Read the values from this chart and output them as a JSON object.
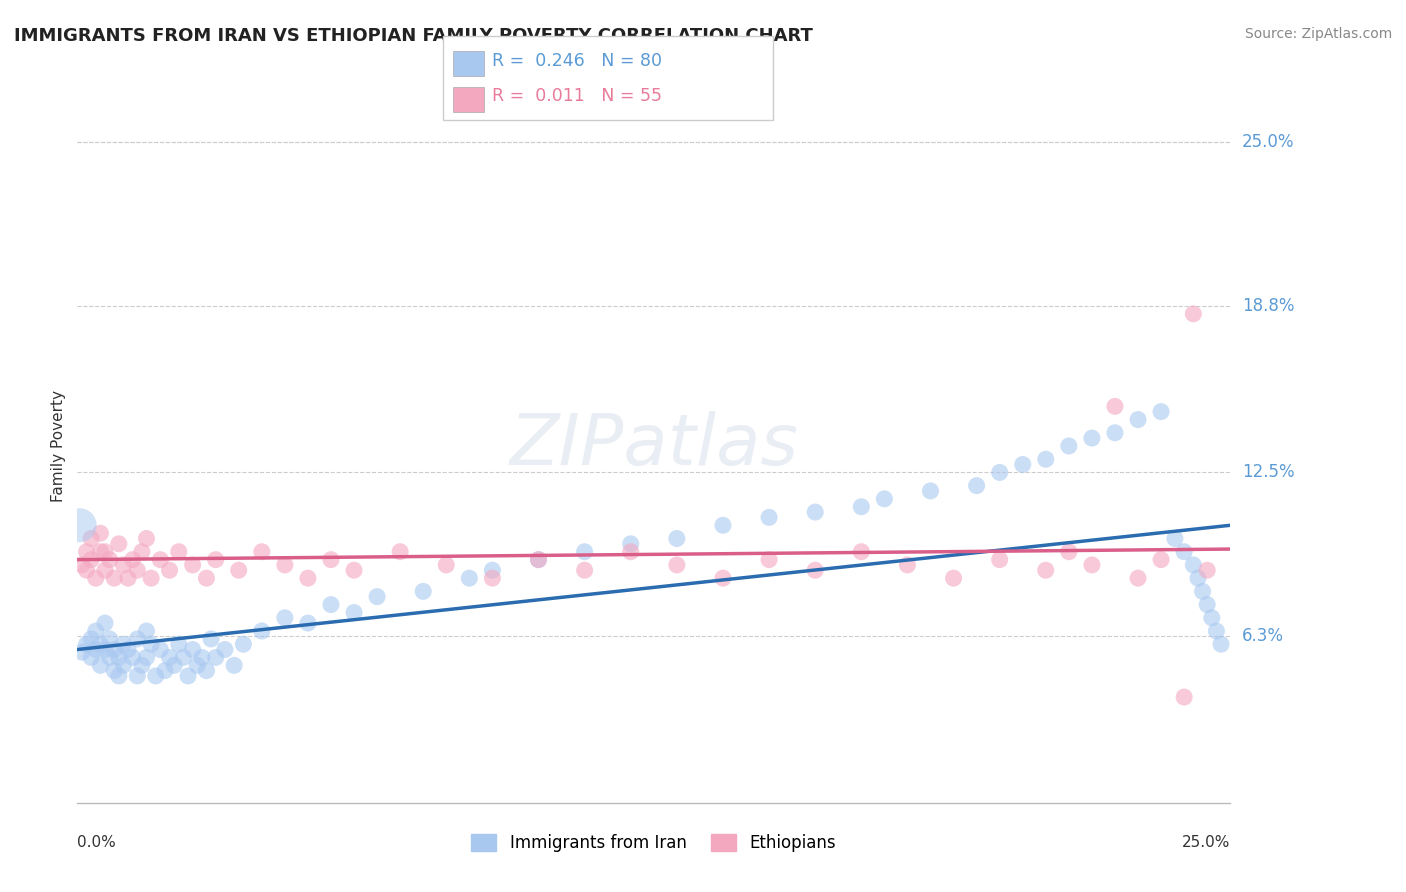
{
  "title": "IMMIGRANTS FROM IRAN VS ETHIOPIAN FAMILY POVERTY CORRELATION CHART",
  "source": "Source: ZipAtlas.com",
  "ylabel": "Family Poverty",
  "xlim": [
    0.0,
    0.25
  ],
  "ylim": [
    0.0,
    0.27
  ],
  "ytick_vals": [
    0.063,
    0.125,
    0.188,
    0.25
  ],
  "ytick_labels": [
    "6.3%",
    "12.5%",
    "18.8%",
    "25.0%"
  ],
  "iran_color": "#a8c8f0",
  "ethiopia_color": "#f4a8c0",
  "iran_line_color": "#2b6cb0",
  "ethiopia_line_color": "#d95f8a",
  "background_color": "#ffffff",
  "grid_color": "#cccccc",
  "title_color": "#222222",
  "source_color": "#888888",
  "tick_label_color": "#5b9bd5",
  "ylabel_color": "#333333",
  "watermark_text": "ZIPatlas",
  "legend_iran_label": "R =  0.246   N = 80",
  "legend_eth_label": "R =  0.011   N = 55",
  "legend_iran_color_text": "#5b9bd5",
  "legend_eth_color_text": "#e87b9a",
  "bottom_legend_iran": "Immigrants from Iran",
  "bottom_legend_eth": "Ethiopians",
  "iran_scatter_x": [
    0.001,
    0.002,
    0.003,
    0.003,
    0.004,
    0.004,
    0.005,
    0.005,
    0.006,
    0.006,
    0.007,
    0.007,
    0.008,
    0.008,
    0.009,
    0.009,
    0.01,
    0.01,
    0.011,
    0.012,
    0.013,
    0.013,
    0.014,
    0.015,
    0.015,
    0.016,
    0.017,
    0.018,
    0.019,
    0.02,
    0.021,
    0.022,
    0.023,
    0.024,
    0.025,
    0.026,
    0.027,
    0.028,
    0.029,
    0.03,
    0.032,
    0.034,
    0.036,
    0.04,
    0.045,
    0.05,
    0.055,
    0.06,
    0.065,
    0.075,
    0.085,
    0.09,
    0.1,
    0.11,
    0.12,
    0.13,
    0.14,
    0.15,
    0.16,
    0.17,
    0.175,
    0.185,
    0.195,
    0.2,
    0.205,
    0.21,
    0.215,
    0.22,
    0.225,
    0.23,
    0.235,
    0.238,
    0.24,
    0.242,
    0.243,
    0.244,
    0.245,
    0.246,
    0.247,
    0.248
  ],
  "iran_scatter_y": [
    0.057,
    0.06,
    0.055,
    0.062,
    0.058,
    0.065,
    0.052,
    0.06,
    0.058,
    0.068,
    0.055,
    0.062,
    0.05,
    0.058,
    0.048,
    0.055,
    0.052,
    0.06,
    0.058,
    0.055,
    0.062,
    0.048,
    0.052,
    0.065,
    0.055,
    0.06,
    0.048,
    0.058,
    0.05,
    0.055,
    0.052,
    0.06,
    0.055,
    0.048,
    0.058,
    0.052,
    0.055,
    0.05,
    0.062,
    0.055,
    0.058,
    0.052,
    0.06,
    0.065,
    0.07,
    0.068,
    0.075,
    0.072,
    0.078,
    0.08,
    0.085,
    0.088,
    0.092,
    0.095,
    0.098,
    0.1,
    0.105,
    0.108,
    0.11,
    0.112,
    0.115,
    0.118,
    0.12,
    0.125,
    0.128,
    0.13,
    0.135,
    0.138,
    0.14,
    0.145,
    0.148,
    0.1,
    0.095,
    0.09,
    0.085,
    0.08,
    0.075,
    0.07,
    0.065,
    0.06
  ],
  "iran_scatter_size": [
    200,
    120,
    100,
    100,
    100,
    100,
    100,
    100,
    100,
    100,
    100,
    100,
    100,
    100,
    100,
    100,
    100,
    100,
    100,
    100,
    100,
    100,
    100,
    100,
    100,
    100,
    100,
    100,
    100,
    100,
    100,
    100,
    100,
    100,
    100,
    100,
    100,
    100,
    100,
    100,
    100,
    100,
    100,
    100,
    100,
    100,
    100,
    100,
    100,
    100,
    100,
    100,
    100,
    100,
    100,
    100,
    100,
    100,
    100,
    100,
    100,
    100,
    100,
    100,
    100,
    100,
    100,
    100,
    100,
    100,
    100,
    100,
    100,
    100,
    100,
    100,
    100,
    100,
    100,
    100
  ],
  "eth_scatter_x": [
    0.001,
    0.002,
    0.002,
    0.003,
    0.003,
    0.004,
    0.005,
    0.005,
    0.006,
    0.006,
    0.007,
    0.008,
    0.009,
    0.01,
    0.011,
    0.012,
    0.013,
    0.014,
    0.015,
    0.016,
    0.018,
    0.02,
    0.022,
    0.025,
    0.028,
    0.03,
    0.035,
    0.04,
    0.045,
    0.05,
    0.055,
    0.06,
    0.07,
    0.08,
    0.09,
    0.1,
    0.11,
    0.12,
    0.13,
    0.14,
    0.15,
    0.16,
    0.17,
    0.18,
    0.19,
    0.2,
    0.21,
    0.215,
    0.22,
    0.225,
    0.23,
    0.235,
    0.24,
    0.242,
    0.245
  ],
  "eth_scatter_y": [
    0.09,
    0.088,
    0.095,
    0.092,
    0.1,
    0.085,
    0.095,
    0.102,
    0.088,
    0.095,
    0.092,
    0.085,
    0.098,
    0.09,
    0.085,
    0.092,
    0.088,
    0.095,
    0.1,
    0.085,
    0.092,
    0.088,
    0.095,
    0.09,
    0.085,
    0.092,
    0.088,
    0.095,
    0.09,
    0.085,
    0.092,
    0.088,
    0.095,
    0.09,
    0.085,
    0.092,
    0.088,
    0.095,
    0.09,
    0.085,
    0.092,
    0.088,
    0.095,
    0.09,
    0.085,
    0.092,
    0.088,
    0.095,
    0.09,
    0.15,
    0.085,
    0.092,
    0.04,
    0.185,
    0.088
  ],
  "eth_scatter_size": [
    100,
    100,
    100,
    100,
    100,
    100,
    100,
    100,
    100,
    100,
    100,
    100,
    100,
    100,
    100,
    100,
    100,
    100,
    100,
    100,
    100,
    100,
    100,
    100,
    100,
    100,
    100,
    100,
    100,
    100,
    100,
    100,
    100,
    100,
    100,
    100,
    100,
    100,
    100,
    100,
    100,
    100,
    100,
    100,
    100,
    100,
    100,
    100,
    100,
    100,
    100,
    100,
    100,
    100,
    100
  ],
  "iran_trend_x": [
    0.0,
    0.25
  ],
  "iran_trend_y_start": 0.058,
  "iran_trend_y_end": 0.105,
  "eth_trend_y_start": 0.092,
  "eth_trend_y_end": 0.096
}
